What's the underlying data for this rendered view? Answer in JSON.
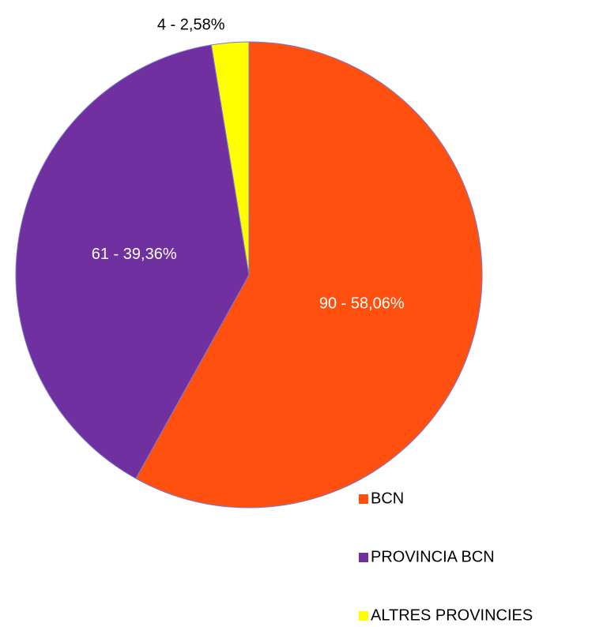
{
  "chart_data": {
    "type": "pie",
    "categories": [
      "BCN",
      "PROVINCIA BCN",
      "ALTRES PROVINCIES"
    ],
    "values": [
      90,
      61,
      4
    ],
    "value_labels": [
      "90 - 58,06%",
      "61 - 39,36%",
      "4 - 2,58%"
    ],
    "colors": [
      "#ff5010",
      "#7030a0",
      "#ffff00"
    ],
    "legend": "bottom-right"
  }
}
